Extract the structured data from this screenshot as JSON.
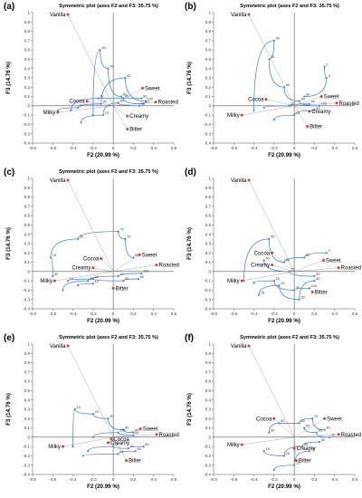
{
  "colors": {
    "attribute": "#e03c31",
    "trajectory": "#4a86e8",
    "axis": "#555555",
    "text": "#000000"
  },
  "chart_data": [
    {
      "type": "scatter",
      "panel": "(a)",
      "title": "Symmetric plot (axes F2 and F3: 35.75 %)",
      "xlabel": "F2 (20.99 %)",
      "ylabel": "F3 (14.76 %)",
      "xlim": [
        -0.8,
        0.6
      ],
      "ylim": [
        -0.4,
        1.0
      ],
      "xticks": [
        -0.8,
        -0.6,
        -0.4,
        -0.2,
        0,
        0.2,
        0.4,
        0.6
      ],
      "yticks": [
        -0.4,
        -0.3,
        -0.2,
        -0.1,
        0,
        0.1,
        0.2,
        0.3,
        0.4,
        0.5,
        0.6,
        0.7,
        0.8,
        0.9,
        1
      ],
      "attributes": [
        {
          "label": "Vanilla",
          "x": -0.45,
          "y": 0.98
        },
        {
          "label": "Sweet",
          "x": 0.29,
          "y": 0.19
        },
        {
          "label": "Cocoa",
          "x": -0.26,
          "y": 0.05
        },
        {
          "label": "Roasted",
          "x": 0.42,
          "y": 0.04
        },
        {
          "label": "Creamy",
          "x": 0.14,
          "y": -0.11
        },
        {
          "label": "Milky",
          "x": -0.55,
          "y": -0.07
        },
        {
          "label": "Bitter",
          "x": 0.14,
          "y": -0.25
        }
      ],
      "trajectories": [
        {
          "points": [
            {
              "x": -0.2,
              "y": -0.1,
              "label": ""
            },
            {
              "x": -0.13,
              "y": 0.6,
              "label": "50"
            },
            {
              "x": -0.05,
              "y": 0.4,
              "label": "55"
            },
            {
              "x": 0.08,
              "y": 0.1,
              "label": "60"
            },
            {
              "x": 0.28,
              "y": 0.08,
              "label": "80"
            }
          ]
        },
        {
          "points": [
            {
              "x": -0.55,
              "y": -0.05,
              "label": ""
            },
            {
              "x": -0.35,
              "y": -0.02,
              "label": "3"
            },
            {
              "x": -0.12,
              "y": 0.02,
              "label": "20"
            },
            {
              "x": 0.12,
              "y": 0.3,
              "label": "60"
            },
            {
              "x": 0.32,
              "y": 0.05,
              "label": "100"
            }
          ]
        },
        {
          "points": [
            {
              "x": -0.32,
              "y": -0.18,
              "label": ""
            },
            {
              "x": -0.1,
              "y": -0.1,
              "label": "15"
            },
            {
              "x": 0.05,
              "y": 0.03,
              "label": "40"
            },
            {
              "x": 0.26,
              "y": 0.0,
              "label": "80"
            }
          ]
        },
        {
          "points": [
            {
              "x": -0.42,
              "y": -0.05,
              "label": ""
            },
            {
              "x": -0.15,
              "y": 0.08,
              "label": "20"
            },
            {
              "x": 0.1,
              "y": 0.08,
              "label": "45"
            },
            {
              "x": 0.3,
              "y": 0.02,
              "label": "80"
            }
          ]
        }
      ]
    },
    {
      "type": "scatter",
      "panel": "(b)",
      "title": "Symmetric plot (axes F2 and F3: 35.75 %)",
      "xlabel": "F2 (20.99 %)",
      "ylabel": "F3 (14.76 %)",
      "xlim": [
        -0.8,
        0.6
      ],
      "ylim": [
        -0.4,
        1.0
      ],
      "xticks": [
        -0.8,
        -0.6,
        -0.4,
        -0.2,
        0,
        0.2,
        0.4,
        0.6
      ],
      "yticks": [
        -0.4,
        -0.3,
        -0.2,
        -0.1,
        0,
        0.1,
        0.2,
        0.3,
        0.4,
        0.5,
        0.6,
        0.7,
        0.8,
        0.9,
        1
      ],
      "attributes": [
        {
          "label": "Vanilla",
          "x": -0.45,
          "y": 0.98
        },
        {
          "label": "Sweet",
          "x": 0.27,
          "y": 0.1
        },
        {
          "label": "Cocoa",
          "x": -0.28,
          "y": 0.07
        },
        {
          "label": "Roasted",
          "x": 0.42,
          "y": 0.03
        },
        {
          "label": "Creamy",
          "x": 0.15,
          "y": -0.06
        },
        {
          "label": "Milky",
          "x": -0.52,
          "y": -0.1
        },
        {
          "label": "Bitter",
          "x": 0.13,
          "y": -0.22
        }
      ],
      "trajectories": [
        {
          "points": [
            {
              "x": -0.4,
              "y": -0.05,
              "label": ""
            },
            {
              "x": -0.2,
              "y": 0.7,
              "label": "40"
            },
            {
              "x": -0.25,
              "y": 0.5,
              "label": "35"
            },
            {
              "x": -0.1,
              "y": 0.2,
              "label": "60"
            },
            {
              "x": 0.05,
              "y": 0.05,
              "label": "80"
            },
            {
              "x": 0.25,
              "y": 0.0,
              "label": "100"
            }
          ]
        },
        {
          "points": [
            {
              "x": -0.2,
              "y": -0.15,
              "label": ""
            },
            {
              "x": 0.0,
              "y": -0.1,
              "label": "15"
            },
            {
              "x": 0.2,
              "y": -0.05,
              "label": "60"
            }
          ]
        },
        {
          "points": [
            {
              "x": 0.3,
              "y": 0.42,
              "label": "0"
            },
            {
              "x": 0.32,
              "y": 0.3,
              "label": "5"
            },
            {
              "x": 0.1,
              "y": 0.1,
              "label": "30"
            }
          ]
        },
        {
          "points": [
            {
              "x": -0.3,
              "y": -0.02,
              "label": ""
            },
            {
              "x": -0.05,
              "y": 0.0,
              "label": "20"
            },
            {
              "x": 0.15,
              "y": 0.02,
              "label": "40"
            }
          ]
        }
      ]
    },
    {
      "type": "scatter",
      "panel": "(c)",
      "title": "Symmetric plot (axes F2 and F3: 35.75 %)",
      "xlabel": "F2 (20.99 %)",
      "ylabel": "F3 (14.76 %)",
      "xlim": [
        -0.8,
        0.6
      ],
      "ylim": [
        -0.4,
        1.0
      ],
      "xticks": [
        -0.8,
        -0.6,
        -0.4,
        -0.2,
        0,
        0.2,
        0.4,
        0.6
      ],
      "yticks": [
        -0.4,
        -0.3,
        -0.2,
        -0.1,
        0,
        0.1,
        0.2,
        0.3,
        0.4,
        0.5,
        0.6,
        0.7,
        0.8,
        0.9,
        1
      ],
      "attributes": [
        {
          "label": "Vanilla",
          "x": -0.45,
          "y": 0.98
        },
        {
          "label": "Sweet",
          "x": 0.26,
          "y": 0.18
        },
        {
          "label": "Cocoa",
          "x": -0.12,
          "y": 0.14
        },
        {
          "label": "Roasted",
          "x": 0.43,
          "y": 0.07
        },
        {
          "label": "Creamy",
          "x": -0.2,
          "y": 0.04
        },
        {
          "label": "Milky",
          "x": -0.58,
          "y": -0.1
        },
        {
          "label": "Bitter",
          "x": 0.0,
          "y": -0.18
        }
      ],
      "trajectories": [
        {
          "points": [
            {
              "x": -0.6,
              "y": -0.05,
              "label": "30"
            },
            {
              "x": -0.62,
              "y": 0.15,
              "label": "10"
            },
            {
              "x": -0.35,
              "y": 0.35,
              "label": "50"
            },
            {
              "x": 0.05,
              "y": 0.43,
              "label": "75"
            },
            {
              "x": 0.12,
              "y": 0.35,
              "label": "70"
            },
            {
              "x": 0.2,
              "y": 0.15,
              "label": "80"
            }
          ]
        },
        {
          "points": [
            {
              "x": -0.5,
              "y": -0.2,
              "label": ""
            },
            {
              "x": -0.25,
              "y": -0.1,
              "label": "17"
            },
            {
              "x": 0.05,
              "y": -0.05,
              "label": "40"
            },
            {
              "x": 0.28,
              "y": -0.02,
              "label": "100"
            }
          ]
        },
        {
          "points": [
            {
              "x": -0.45,
              "y": -0.1,
              "label": "10"
            },
            {
              "x": -0.2,
              "y": -0.08,
              "label": "20"
            },
            {
              "x": 0.1,
              "y": -0.1,
              "label": "60"
            },
            {
              "x": 0.25,
              "y": -0.08,
              "label": "80"
            }
          ]
        },
        {
          "points": [
            {
              "x": -0.35,
              "y": -0.15,
              "label": ""
            },
            {
              "x": -0.2,
              "y": -0.13,
              "label": "12"
            }
          ]
        }
      ]
    },
    {
      "type": "scatter",
      "panel": "(d)",
      "title": "",
      "xlabel": "F2 (20.99 %)",
      "ylabel": "F3 (14.76 %)",
      "xlim": [
        -0.8,
        0.6
      ],
      "ylim": [
        -0.4,
        1.0
      ],
      "xticks": [
        -0.8,
        -0.6,
        -0.4,
        -0.2,
        0,
        0.2,
        0.4,
        0.6
      ],
      "yticks": [
        -0.4,
        -0.3,
        -0.2,
        -0.1,
        0,
        0.1,
        0.2,
        0.3,
        0.4,
        0.5,
        0.6,
        0.7,
        0.8,
        0.9,
        1
      ],
      "attributes": [
        {
          "label": "Vanilla",
          "x": -0.45,
          "y": 0.98
        },
        {
          "label": "Sweet",
          "x": 0.29,
          "y": 0.12
        },
        {
          "label": "Cocoa",
          "x": -0.22,
          "y": 0.2
        },
        {
          "label": "Roasted",
          "x": 0.44,
          "y": 0.04
        },
        {
          "label": "Creamy",
          "x": -0.22,
          "y": 0.07
        },
        {
          "label": "Milky",
          "x": -0.52,
          "y": -0.1
        },
        {
          "label": "Bitter",
          "x": 0.18,
          "y": -0.22
        }
      ],
      "trajectories": [
        {
          "points": [
            {
              "x": -0.5,
              "y": -0.1,
              "label": ""
            },
            {
              "x": -0.25,
              "y": 0.35,
              "label": "55"
            },
            {
              "x": -0.1,
              "y": 0.1,
              "label": "60"
            },
            {
              "x": 0.1,
              "y": 0.15,
              "label": "80"
            },
            {
              "x": 0.32,
              "y": 0.2,
              "label": "0"
            }
          ]
        },
        {
          "points": [
            {
              "x": -0.35,
              "y": -0.25,
              "label": "15"
            },
            {
              "x": -0.15,
              "y": -0.15,
              "label": "25"
            },
            {
              "x": 0.05,
              "y": -0.3,
              "label": "30"
            },
            {
              "x": 0.2,
              "y": -0.1,
              "label": "60"
            }
          ]
        },
        {
          "points": [
            {
              "x": -0.4,
              "y": -0.12,
              "label": ""
            },
            {
              "x": -0.2,
              "y": -0.1,
              "label": "20"
            },
            {
              "x": 0.0,
              "y": -0.2,
              "label": "50"
            },
            {
              "x": 0.15,
              "y": -0.18,
              "label": "100"
            }
          ]
        },
        {
          "points": [
            {
              "x": -0.3,
              "y": 0.12,
              "label": "40"
            },
            {
              "x": -0.05,
              "y": 0.0,
              "label": "75"
            },
            {
              "x": 0.2,
              "y": -0.05,
              "label": "80"
            }
          ]
        }
      ]
    },
    {
      "type": "scatter",
      "panel": "(e)",
      "title": "Symmetric plot (axes F2 and F3: 35.75 %)",
      "xlabel": "F2 (20.99 %)",
      "ylabel": "F3 (14.76 %)",
      "xlim": [
        -0.8,
        0.6
      ],
      "ylim": [
        -0.4,
        1.0
      ],
      "xticks": [
        -0.8,
        -0.6,
        -0.4,
        -0.2,
        0,
        0.2,
        0.4,
        0.6
      ],
      "yticks": [
        -0.4,
        -0.3,
        -0.2,
        -0.1,
        0,
        0.1,
        0.2,
        0.3,
        0.4,
        0.5,
        0.6,
        0.7,
        0.8,
        0.9,
        1
      ],
      "attributes": [
        {
          "label": "Vanilla",
          "x": -0.45,
          "y": 0.98
        },
        {
          "label": "Sweet",
          "x": 0.27,
          "y": 0.09
        },
        {
          "label": "Cocoa",
          "x": -0.02,
          "y": -0.02
        },
        {
          "label": "Roasted",
          "x": 0.43,
          "y": 0.03
        },
        {
          "label": "Creamy",
          "x": -0.05,
          "y": -0.06
        },
        {
          "label": "Milky",
          "x": -0.5,
          "y": -0.1
        },
        {
          "label": "Bitter",
          "x": 0.13,
          "y": -0.25
        }
      ],
      "trajectories": [
        {
          "points": [
            {
              "x": -0.4,
              "y": -0.1,
              "label": ""
            },
            {
              "x": -0.38,
              "y": 0.3,
              "label": "10"
            },
            {
              "x": -0.2,
              "y": 0.25,
              "label": "20"
            },
            {
              "x": -0.05,
              "y": 0.2,
              "label": "30"
            },
            {
              "x": 0.1,
              "y": 0.08,
              "label": "60"
            },
            {
              "x": 0.2,
              "y": 0.05,
              "label": "80"
            }
          ]
        },
        {
          "points": [
            {
              "x": -0.25,
              "y": -0.15,
              "label": ""
            },
            {
              "x": 0.0,
              "y": -0.1,
              "label": "20"
            },
            {
              "x": 0.15,
              "y": -0.12,
              "label": "40"
            },
            {
              "x": 0.3,
              "y": -0.1,
              "label": "80"
            }
          ]
        },
        {
          "points": [
            {
              "x": -0.3,
              "y": -0.2,
              "label": ""
            },
            {
              "x": 0.05,
              "y": -0.18,
              "label": "55"
            },
            {
              "x": 0.22,
              "y": -0.15,
              "label": "60"
            }
          ]
        },
        {
          "points": [
            {
              "x": -0.2,
              "y": 0.0,
              "label": ""
            },
            {
              "x": 0.05,
              "y": 0.05,
              "label": "100"
            },
            {
              "x": 0.2,
              "y": 0.02,
              "label": "60"
            }
          ]
        }
      ]
    },
    {
      "type": "scatter",
      "panel": "(f)",
      "title": "Symmetric plot (axes F2 and F3: 35.75 %)",
      "xlabel": "F2 (20.99 %)",
      "ylabel": "F3 (14.76 %)",
      "xlim": [
        -0.8,
        0.6
      ],
      "ylim": [
        -0.4,
        1.0
      ],
      "xticks": [
        -0.8,
        -0.6,
        -0.4,
        -0.2,
        0,
        0.2,
        0.4,
        0.6
      ],
      "yticks": [
        -0.4,
        -0.3,
        -0.2,
        -0.1,
        0,
        0.1,
        0.2,
        0.3,
        0.4,
        0.5,
        0.6,
        0.7,
        0.8,
        0.9,
        1
      ],
      "attributes": [
        {
          "label": "Vanilla",
          "x": -0.45,
          "y": 0.98
        },
        {
          "label": "Sweet",
          "x": 0.3,
          "y": 0.2
        },
        {
          "label": "Cocoa",
          "x": -0.2,
          "y": 0.2
        },
        {
          "label": "Roasted",
          "x": 0.44,
          "y": 0.03
        },
        {
          "label": "Creamy",
          "x": 0.0,
          "y": -0.12
        },
        {
          "label": "Milky",
          "x": -0.52,
          "y": -0.08
        },
        {
          "label": "Bitter",
          "x": 0.02,
          "y": -0.25
        }
      ],
      "trajectories": [
        {
          "points": [
            {
              "x": -0.25,
              "y": 0.05,
              "label": "30"
            },
            {
              "x": -0.15,
              "y": 0.15,
              "label": "50"
            },
            {
              "x": 0.05,
              "y": 0.15,
              "label": "60"
            },
            {
              "x": 0.18,
              "y": 0.2,
              "label": "70"
            },
            {
              "x": 0.3,
              "y": 0.08,
              "label": "80"
            }
          ]
        },
        {
          "points": [
            {
              "x": -0.3,
              "y": -0.15,
              "label": "15"
            },
            {
              "x": -0.1,
              "y": -0.2,
              "label": "25"
            },
            {
              "x": 0.08,
              "y": -0.1,
              "label": "55"
            },
            {
              "x": 0.25,
              "y": -0.05,
              "label": "80"
            }
          ]
        },
        {
          "points": [
            {
              "x": -0.2,
              "y": -0.35,
              "label": ""
            },
            {
              "x": 0.0,
              "y": -0.3,
              "label": "13"
            },
            {
              "x": 0.15,
              "y": -0.15,
              "label": "45"
            }
          ]
        },
        {
          "points": [
            {
              "x": 0.1,
              "y": 0.1,
              "label": "65"
            },
            {
              "x": 0.22,
              "y": 0.05,
              "label": "85"
            },
            {
              "x": 0.35,
              "y": 0.0,
              "label": "30"
            }
          ]
        }
      ]
    }
  ]
}
